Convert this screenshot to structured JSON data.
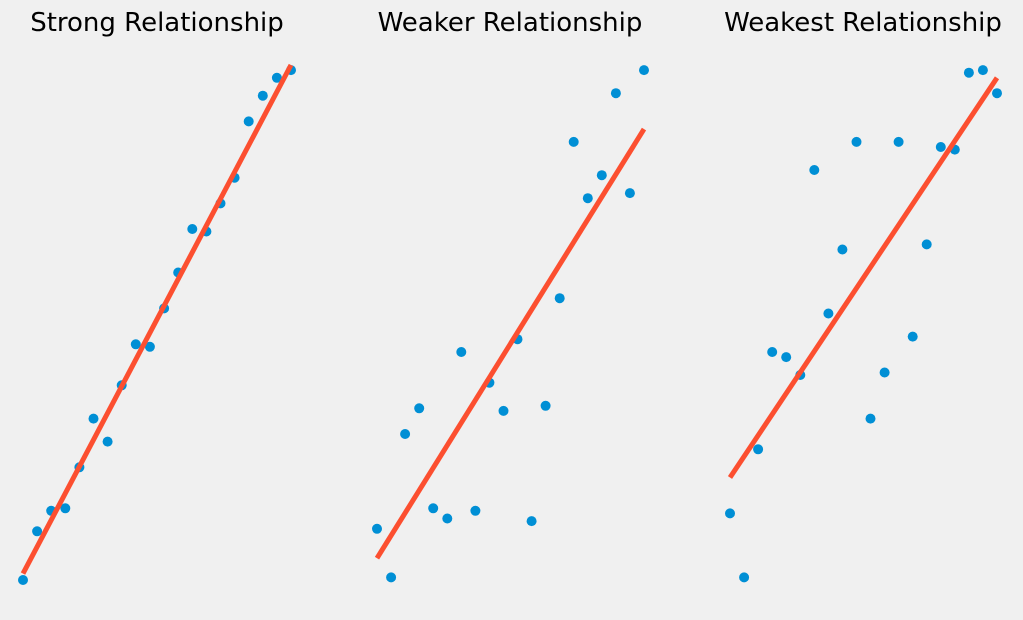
{
  "figure": {
    "background": "#f0f0f0",
    "point_color": "#008fd5",
    "line_color": "#fc4f30"
  },
  "chart_data": [
    {
      "type": "scatter",
      "title": "Strong Relationship",
      "xlabel": "",
      "ylabel": "",
      "grid": false,
      "axes_visible": false,
      "x": [
        0,
        1,
        2,
        3,
        4,
        5,
        6,
        7,
        8,
        9,
        10,
        11,
        12,
        13,
        14,
        15,
        16,
        17,
        18,
        19
      ],
      "y": [
        0.2,
        2.1,
        2.9,
        3.0,
        4.6,
        6.5,
        5.6,
        7.8,
        9.4,
        9.3,
        10.8,
        12.2,
        13.9,
        13.8,
        14.9,
        15.9,
        18.1,
        19.1,
        19.8,
        20.1
      ],
      "xlim": [
        0,
        19
      ],
      "ylim": [
        0.2,
        20.3
      ],
      "fit_line": {
        "x": [
          0,
          19
        ],
        "y": [
          0.45,
          20.3
        ]
      }
    },
    {
      "type": "scatter",
      "title": "Weaker Relationship",
      "xlabel": "",
      "ylabel": "",
      "grid": false,
      "axes_visible": false,
      "x": [
        0,
        1,
        2,
        3,
        4,
        5,
        6,
        7,
        8,
        9,
        10,
        11,
        12,
        13,
        14,
        15,
        16,
        17,
        18,
        19
      ],
      "y": [
        2.2,
        0.3,
        5.9,
        6.9,
        3.0,
        2.6,
        9.1,
        2.9,
        7.9,
        6.8,
        9.6,
        2.5,
        7.0,
        11.2,
        17.3,
        15.1,
        16.0,
        19.2,
        15.3,
        20.1
      ],
      "xlim": [
        0,
        19
      ],
      "ylim": [
        0.2,
        20.3
      ],
      "fit_line": {
        "x": [
          0,
          19
        ],
        "y": [
          1.05,
          17.8
        ]
      }
    },
    {
      "type": "scatter",
      "title": "Weakest Relationship",
      "xlabel": "",
      "ylabel": "",
      "grid": false,
      "axes_visible": false,
      "x": [
        0,
        1,
        2,
        3,
        4,
        5,
        6,
        7,
        8,
        9,
        10,
        11,
        12,
        13,
        14,
        15,
        16,
        17,
        18,
        19
      ],
      "y": [
        2.8,
        0.3,
        5.3,
        9.1,
        8.9,
        8.2,
        16.2,
        10.6,
        13.1,
        17.3,
        6.5,
        8.3,
        17.3,
        9.7,
        13.3,
        17.1,
        17.0,
        20.0,
        20.1,
        19.2
      ],
      "xlim": [
        0,
        19
      ],
      "ylim": [
        0.2,
        20.3
      ],
      "fit_line": {
        "x": [
          0,
          19
        ],
        "y": [
          4.2,
          19.8
        ]
      }
    }
  ]
}
